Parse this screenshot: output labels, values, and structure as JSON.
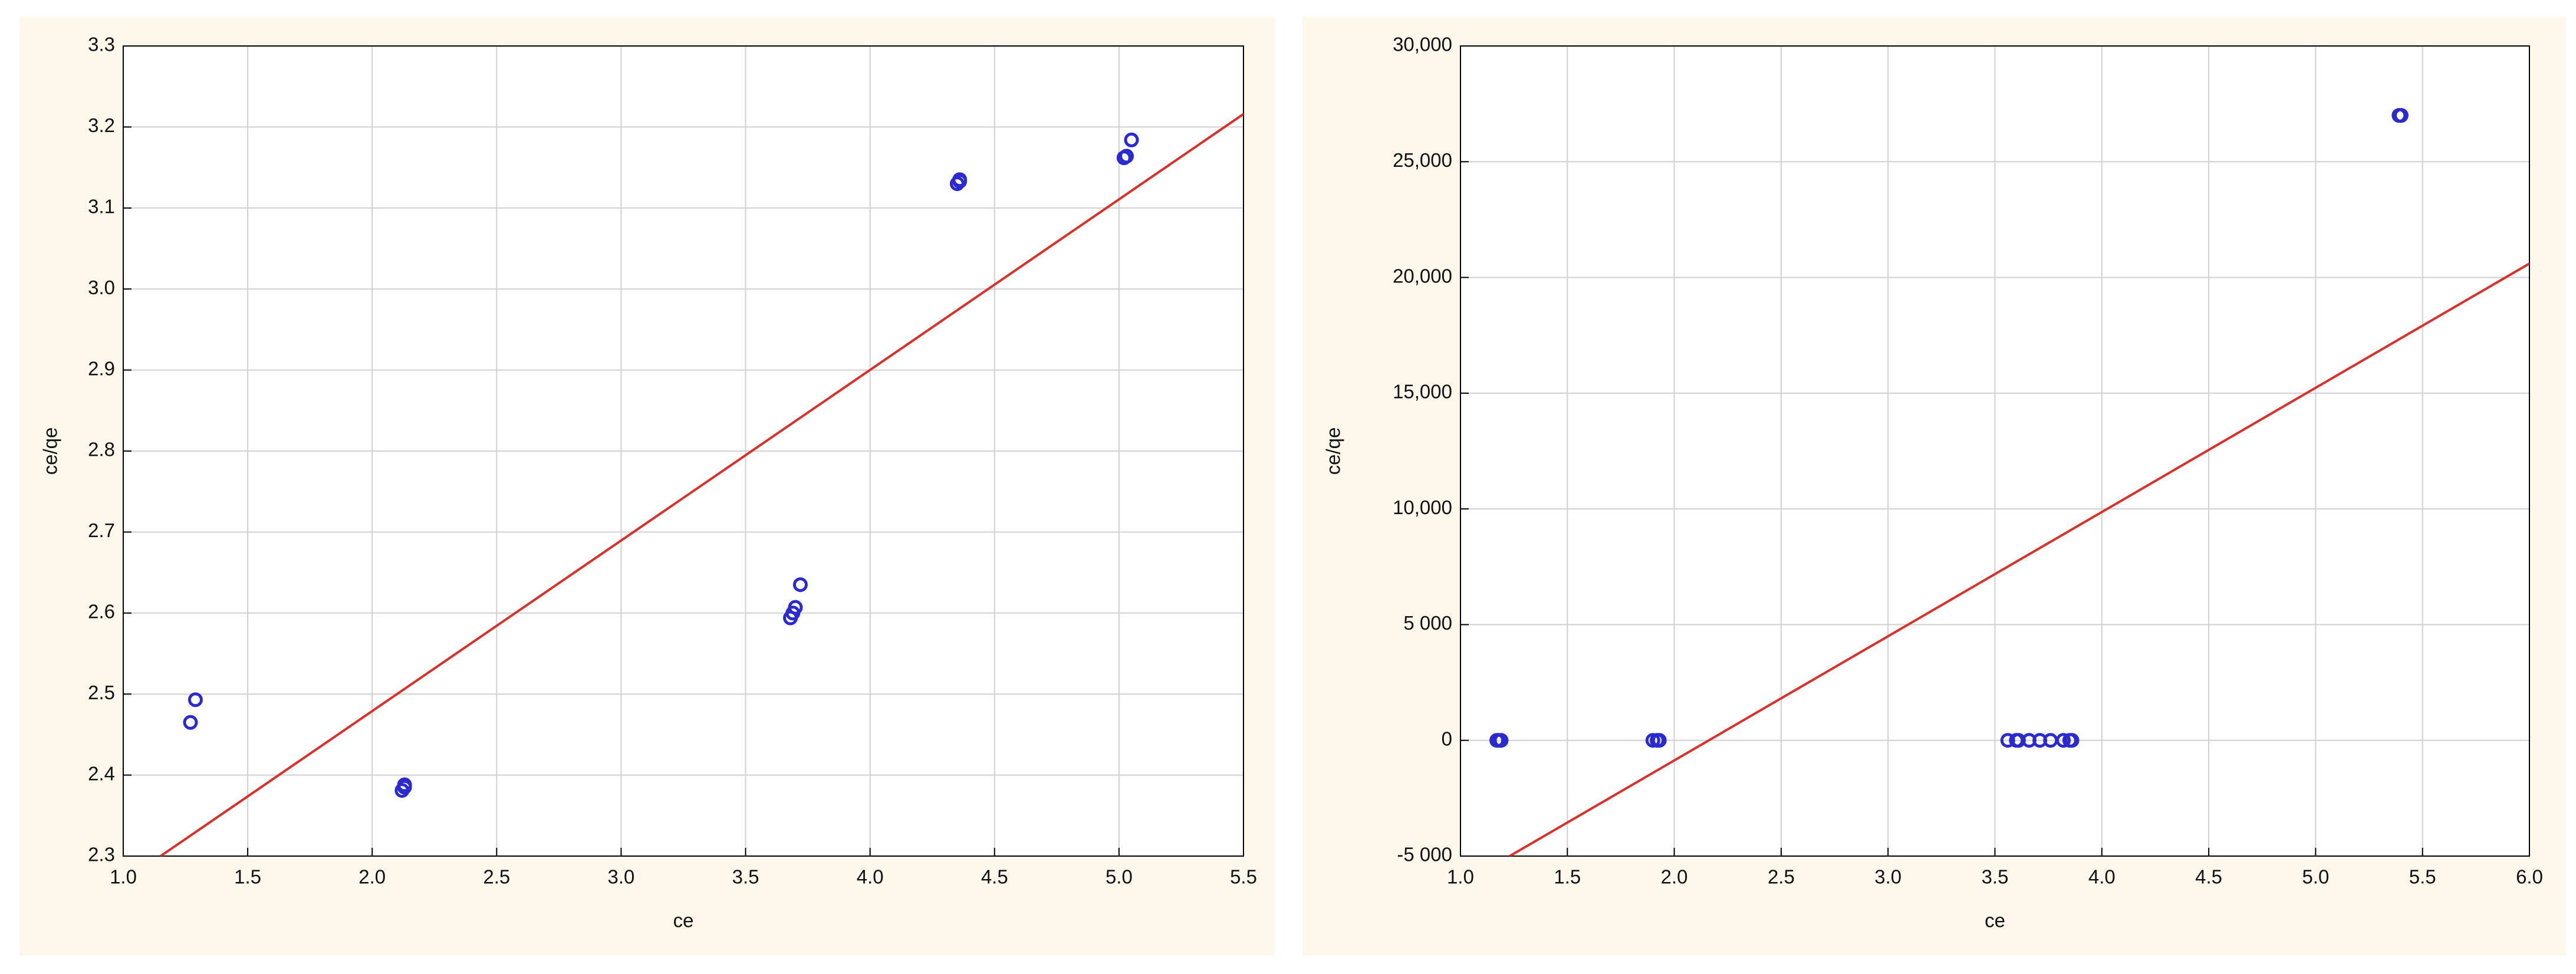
{
  "chart_data": [
    {
      "type": "scatter",
      "x_label": "ce",
      "y_label": "ce/qe",
      "x": [
        1.27,
        1.29,
        2.12,
        2.13,
        2.13,
        3.68,
        3.69,
        3.7,
        3.72,
        4.35,
        4.36,
        4.36,
        5.02,
        5.03,
        5.05
      ],
      "y": [
        2.465,
        2.493,
        2.381,
        2.385,
        2.388,
        2.594,
        2.6,
        2.607,
        2.635,
        3.13,
        3.133,
        3.135,
        3.162,
        3.164,
        3.184
      ],
      "color": "#2a2ad0",
      "fit_line": {
        "x": [
          1.15,
          5.5
        ],
        "y": [
          2.3,
          3.216
        ],
        "color": "#d9302a"
      },
      "xlim": [
        1.0,
        5.5
      ],
      "xticks": [
        {
          "value": 1,
          "label": "1.0"
        },
        1.5,
        {
          "value": 2,
          "label": "2.0"
        },
        2.5,
        {
          "value": 3,
          "label": "3.0"
        },
        3.5,
        {
          "value": 4,
          "label": "4.0"
        },
        4.5,
        {
          "value": 5,
          "label": "5.0"
        },
        5.5
      ],
      "ylim": [
        2.3,
        3.3
      ],
      "yticks": [
        2.3,
        2.4,
        2.5,
        2.6,
        2.7,
        2.8,
        2.9,
        {
          "value": 3,
          "label": "3.0"
        },
        3.1,
        3.2,
        3.3
      ],
      "grid": true
    },
    {
      "type": "scatter",
      "x_label": "ce",
      "y_label": "ce/qe",
      "x": [
        1.17,
        1.18,
        1.19,
        1.9,
        1.92,
        1.93,
        3.56,
        3.6,
        3.61,
        3.66,
        3.71,
        3.76,
        3.82,
        3.85,
        3.86,
        5.39,
        5.4
      ],
      "y": [
        0,
        0,
        0,
        0,
        0,
        0,
        0,
        0,
        0,
        0,
        0,
        0,
        0,
        0,
        0,
        27000,
        27000
      ],
      "color": "#2a2ad0",
      "fit_line": {
        "x": [
          1.23,
          6.0
        ],
        "y": [
          -5000,
          20600
        ],
        "color": "#d9302a"
      },
      "xlim": [
        1.0,
        6.0
      ],
      "xticks": [
        {
          "value": 1,
          "label": "1.0"
        },
        1.5,
        {
          "value": 2,
          "label": "2.0"
        },
        2.5,
        {
          "value": 3,
          "label": "3.0"
        },
        3.5,
        {
          "value": 4,
          "label": "4.0"
        },
        4.5,
        {
          "value": 5,
          "label": "5.0"
        },
        5.5,
        {
          "value": 6,
          "label": "6.0"
        }
      ],
      "ylim": [
        -5000,
        30000
      ],
      "yticks": [
        {
          "value": -5000,
          "label": "-5 000"
        },
        0,
        {
          "value": 5000,
          "label": "5 000"
        },
        {
          "value": 10000,
          "label": "10,000"
        },
        {
          "value": 15000,
          "label": "15,000"
        },
        {
          "value": 20000,
          "label": "20,000"
        },
        {
          "value": 25000,
          "label": "25,000"
        },
        {
          "value": 30000,
          "label": "30,000"
        }
      ],
      "grid": true
    }
  ]
}
